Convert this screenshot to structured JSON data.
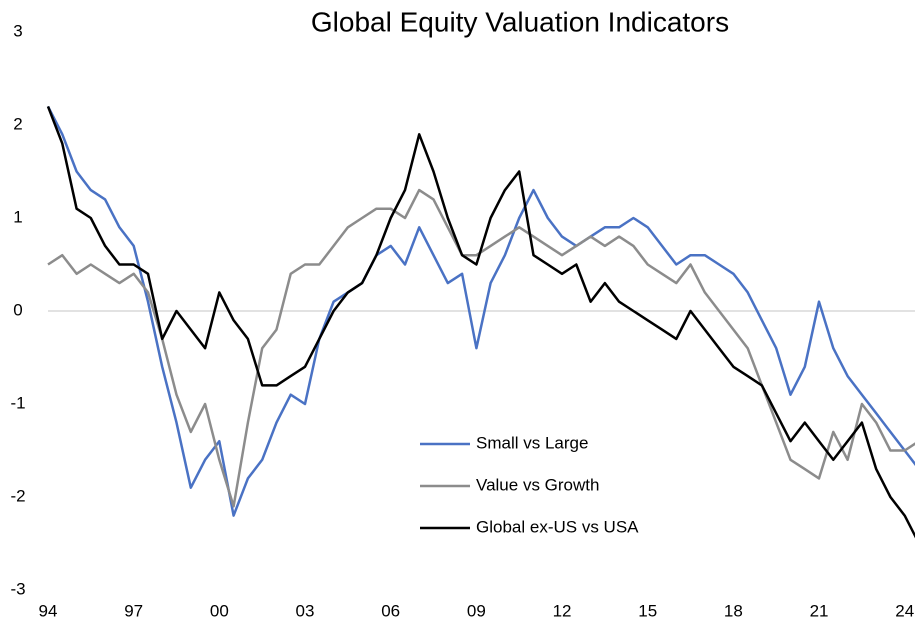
{
  "chart_data": {
    "type": "line",
    "title": "Global Equity Valuation Indicators",
    "x": [
      1994,
      1994.5,
      1995,
      1995.5,
      1996,
      1996.5,
      1997,
      1997.5,
      1998,
      1998.5,
      1999,
      1999.5,
      2000,
      2000.5,
      2001,
      2001.5,
      2002,
      2002.5,
      2003,
      2003.5,
      2004,
      2004.5,
      2005,
      2005.5,
      2006,
      2006.5,
      2007,
      2007.5,
      2008,
      2008.5,
      2009,
      2009.5,
      2010,
      2010.5,
      2011,
      2011.5,
      2012,
      2012.5,
      2013,
      2013.5,
      2014,
      2014.5,
      2015,
      2015.5,
      2016,
      2016.5,
      2017,
      2017.5,
      2018,
      2018.5,
      2019,
      2019.5,
      2020,
      2020.5,
      2021,
      2021.5,
      2022,
      2022.5,
      2023,
      2023.5,
      2024,
      2024.5
    ],
    "series": [
      {
        "name": "Small vs Large",
        "color": "#4a72c4",
        "values": [
          2.2,
          1.9,
          1.5,
          1.3,
          1.2,
          0.9,
          0.7,
          0.1,
          -0.6,
          -1.2,
          -1.9,
          -1.6,
          -1.4,
          -2.2,
          -1.8,
          -1.6,
          -1.2,
          -0.9,
          -1.0,
          -0.3,
          0.1,
          0.2,
          0.3,
          0.6,
          0.7,
          0.5,
          0.9,
          0.6,
          0.3,
          0.4,
          -0.4,
          0.3,
          0.6,
          1.0,
          1.3,
          1.0,
          0.8,
          0.7,
          0.8,
          0.9,
          0.9,
          1.0,
          0.9,
          0.7,
          0.5,
          0.6,
          0.6,
          0.5,
          0.4,
          0.2,
          -0.1,
          -0.4,
          -0.9,
          -0.6,
          0.1,
          -0.4,
          -0.7,
          -0.9,
          -1.1,
          -1.3,
          -1.5,
          -1.7
        ]
      },
      {
        "name": "Value vs Growth",
        "color": "#8c8c8c",
        "values": [
          0.5,
          0.6,
          0.4,
          0.5,
          0.4,
          0.3,
          0.4,
          0.2,
          -0.3,
          -0.9,
          -1.3,
          -1.0,
          -1.6,
          -2.1,
          -1.2,
          -0.4,
          -0.2,
          0.4,
          0.5,
          0.5,
          0.7,
          0.9,
          1.0,
          1.1,
          1.1,
          1.0,
          1.3,
          1.2,
          0.9,
          0.6,
          0.6,
          0.7,
          0.8,
          0.9,
          0.8,
          0.7,
          0.6,
          0.7,
          0.8,
          0.7,
          0.8,
          0.7,
          0.5,
          0.4,
          0.3,
          0.5,
          0.2,
          0.0,
          -0.2,
          -0.4,
          -0.8,
          -1.2,
          -1.6,
          -1.7,
          -1.8,
          -1.3,
          -1.6,
          -1.0,
          -1.2,
          -1.5,
          -1.5,
          -1.4
        ]
      },
      {
        "name": "Global ex-US vs USA",
        "color": "#000000",
        "values": [
          2.2,
          1.8,
          1.1,
          1.0,
          0.7,
          0.5,
          0.5,
          0.4,
          -0.3,
          0.0,
          -0.2,
          -0.4,
          0.2,
          -0.1,
          -0.3,
          -0.8,
          -0.8,
          -0.7,
          -0.6,
          -0.3,
          0.0,
          0.2,
          0.3,
          0.6,
          1.0,
          1.3,
          1.9,
          1.5,
          1.0,
          0.6,
          0.5,
          1.0,
          1.3,
          1.5,
          0.6,
          0.5,
          0.4,
          0.5,
          0.1,
          0.3,
          0.1,
          0.0,
          -0.1,
          -0.2,
          -0.3,
          0.0,
          -0.2,
          -0.4,
          -0.6,
          -0.7,
          -0.8,
          -1.1,
          -1.4,
          -1.2,
          -1.4,
          -1.6,
          -1.4,
          -1.2,
          -1.7,
          -2.0,
          -2.2,
          -2.5
        ]
      }
    ],
    "xlim": [
      1994,
      2024.5
    ],
    "xticks": [
      {
        "value": 1994,
        "label": "94"
      },
      {
        "value": 1997,
        "label": "97"
      },
      {
        "value": 2000,
        "label": "00"
      },
      {
        "value": 2003,
        "label": "03"
      },
      {
        "value": 2006,
        "label": "06"
      },
      {
        "value": 2009,
        "label": "09"
      },
      {
        "value": 2012,
        "label": "12"
      },
      {
        "value": 2015,
        "label": "15"
      },
      {
        "value": 2018,
        "label": "18"
      },
      {
        "value": 2021,
        "label": "21"
      },
      {
        "value": 2024,
        "label": "24"
      }
    ],
    "ylim": [
      -3,
      3
    ],
    "yticks": [
      -3,
      -2,
      -1,
      0,
      1,
      2,
      3
    ],
    "grid": false
  }
}
